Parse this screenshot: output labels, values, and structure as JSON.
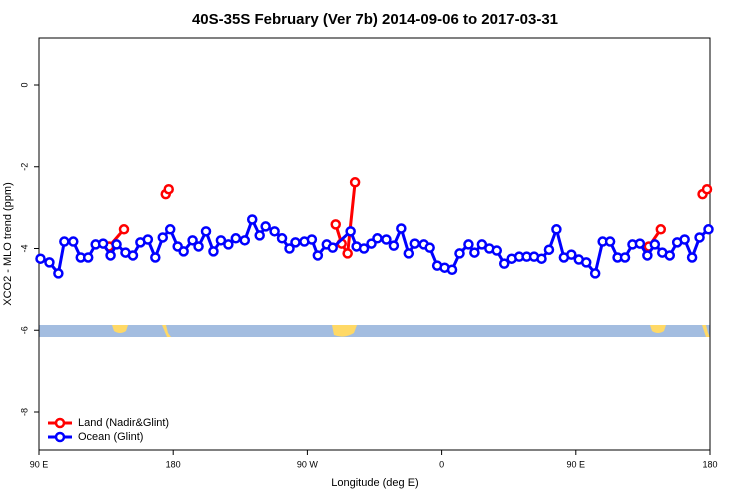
{
  "chart_data": {
    "type": "line",
    "title": "40S-35S February (Ver 7b)   2014-09-06 to 2017-03-31",
    "x_label": "Longitude (deg E)",
    "y_label": "XCO2 - MLO trend (ppm)",
    "xlim": [
      90,
      540
    ],
    "xticks": [
      {
        "value": 90,
        "label": "90 E"
      },
      180,
      {
        "value": 270,
        "label": "90 W"
      },
      {
        "value": 360,
        "label": "0"
      },
      {
        "value": 450,
        "label": "90 E"
      },
      {
        "value": 540,
        "label": "180"
      }
    ],
    "ylim": [
      -8.93,
      1.15
    ],
    "yticks": [
      0,
      -2,
      -4,
      -6,
      -8
    ],
    "legend": "bottom-left",
    "grid": false,
    "series": [
      {
        "name": "Land (Nadir&Glint)",
        "color": "#ff0000",
        "x": [
          137,
          147,
          null,
          175,
          177,
          null,
          289,
          293,
          297,
          302,
          null,
          499,
          507,
          null,
          535,
          538
        ],
        "values": [
          -3.95,
          -3.53,
          null,
          -2.67,
          -2.55,
          null,
          -3.41,
          -3.88,
          -4.12,
          -2.38,
          null,
          -3.95,
          -3.53,
          null,
          -2.67,
          -2.55
        ]
      },
      {
        "name": "Ocean (Glint)",
        "color": "#0000ff",
        "x": [
          91,
          97,
          103,
          107,
          113,
          118,
          123,
          128,
          133,
          138,
          142,
          148,
          153,
          158,
          163,
          168,
          173,
          178,
          183,
          187,
          193,
          197,
          202,
          207,
          212,
          217,
          222,
          228,
          233,
          238,
          242,
          248,
          253,
          258,
          262,
          268,
          273,
          277,
          283,
          287,
          299,
          303,
          308,
          313,
          317,
          323,
          328,
          333,
          338,
          342,
          348,
          352,
          357,
          362,
          367,
          372,
          378,
          382,
          387,
          392,
          397,
          402,
          407,
          412,
          417,
          422,
          427,
          432,
          437,
          442,
          447,
          452,
          457,
          463,
          468,
          473,
          478,
          483,
          488,
          493,
          498,
          503,
          508,
          513,
          518,
          523,
          528,
          533,
          539
        ],
        "values": [
          -4.25,
          -4.34,
          -4.61,
          -3.83,
          -3.83,
          -4.22,
          -4.22,
          -3.9,
          -3.88,
          -4.17,
          -3.9,
          -4.1,
          -4.17,
          -3.85,
          -3.78,
          -4.22,
          -3.73,
          -3.53,
          -3.95,
          -4.07,
          -3.8,
          -3.95,
          -3.58,
          -4.07,
          -3.8,
          -3.9,
          -3.75,
          -3.8,
          -3.29,
          -3.68,
          -3.46,
          -3.58,
          -3.75,
          -4.0,
          -3.85,
          -3.83,
          -3.78,
          -4.17,
          -3.9,
          -3.98,
          -3.58,
          -3.95,
          -4.0,
          -3.88,
          -3.75,
          -3.78,
          -3.93,
          -3.51,
          -4.12,
          -3.88,
          -3.9,
          -3.98,
          -4.42,
          -4.47,
          -4.52,
          -4.12,
          -3.9,
          -4.1,
          -3.9,
          -4.0,
          -4.05,
          -4.37,
          -4.25,
          -4.2,
          -4.2,
          -4.2,
          -4.25,
          -4.03,
          -3.53,
          -4.22,
          -4.15,
          -4.27,
          -4.34,
          -4.61,
          -3.83,
          -3.83,
          -4.22,
          -4.22,
          -3.9,
          -3.88,
          -4.17,
          -3.9,
          -4.1,
          -4.17,
          -3.85,
          -3.78,
          -4.22,
          -3.73,
          -3.53
        ]
      }
    ]
  }
}
